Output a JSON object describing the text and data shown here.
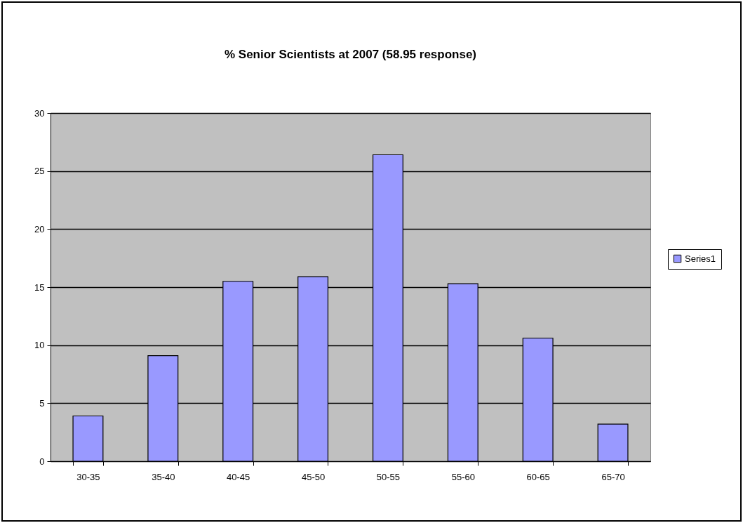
{
  "chart_data": {
    "type": "bar",
    "title": "% Senior Scientists at 2007 (58.95 response)",
    "categories": [
      "30-35",
      "35-40",
      "40-45",
      "45-50",
      "50-55",
      "55-60",
      "60-65",
      "65-70"
    ],
    "series": [
      {
        "name": "Series1",
        "color": "#9999ff",
        "values": [
          3.9,
          9.1,
          15.5,
          15.9,
          26.4,
          15.3,
          10.6,
          3.2
        ]
      }
    ],
    "ylim": [
      0,
      30
    ],
    "yticks": [
      0,
      5,
      10,
      15,
      20,
      25,
      30
    ],
    "grid": "y",
    "legend": "right"
  }
}
